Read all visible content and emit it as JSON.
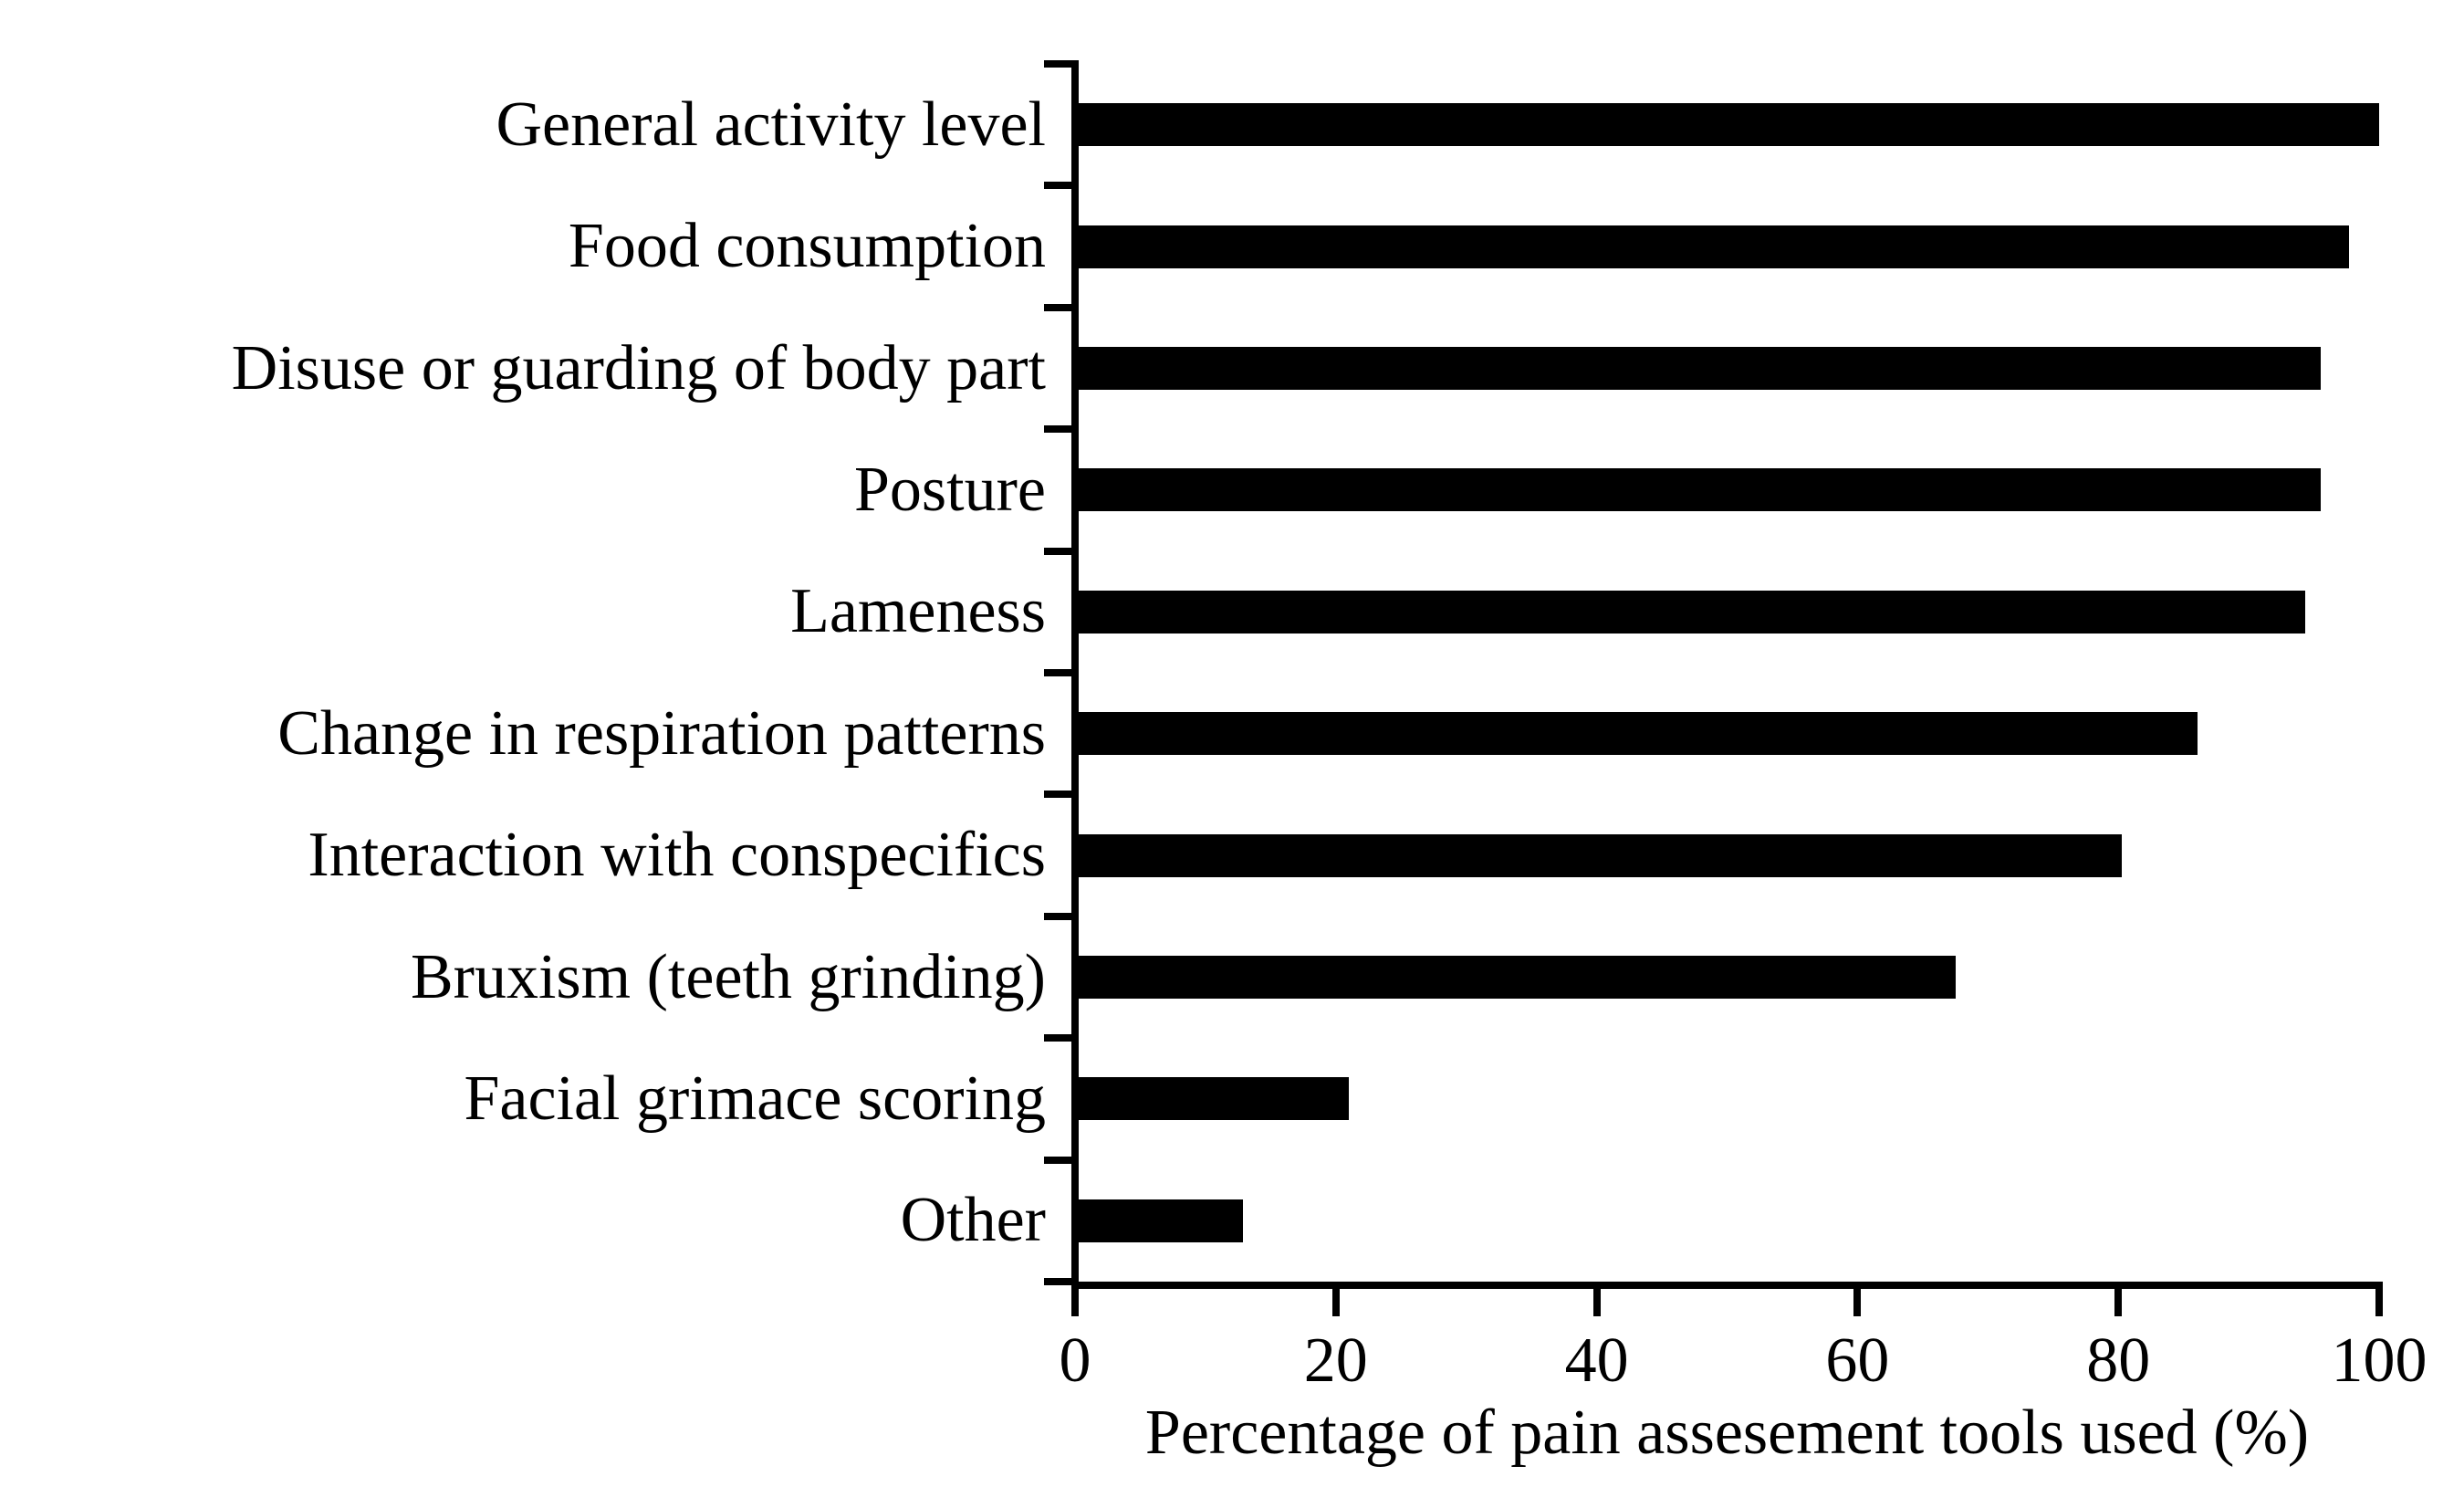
{
  "chart_data": {
    "type": "bar",
    "orientation": "horizontal",
    "title": "",
    "xlabel": "Percentage of pain assesement tools used (%)",
    "ylabel": "",
    "categories": [
      "General activity level",
      "Food consumption",
      "Disuse or guarding of body part",
      "Posture",
      "Lameness",
      "Change in respiration patterns",
      "Interaction with conspecifics",
      "Bruxism (teeth grinding)",
      "Facial grimace scoring",
      "Other"
    ],
    "values": [
      100,
      97.7,
      95.5,
      95.5,
      94.3,
      86.1,
      80.3,
      67.5,
      21,
      12.9
    ],
    "xlim": [
      0,
      100
    ],
    "xticks": [
      0,
      20,
      40,
      60,
      80,
      100
    ],
    "xtick_labels": [
      "0",
      "20",
      "40",
      "60",
      "80",
      "100"
    ],
    "grid": false,
    "legend": null,
    "bar_color": "#000000",
    "axis_color": "#000000",
    "background_color": "#ffffff"
  }
}
